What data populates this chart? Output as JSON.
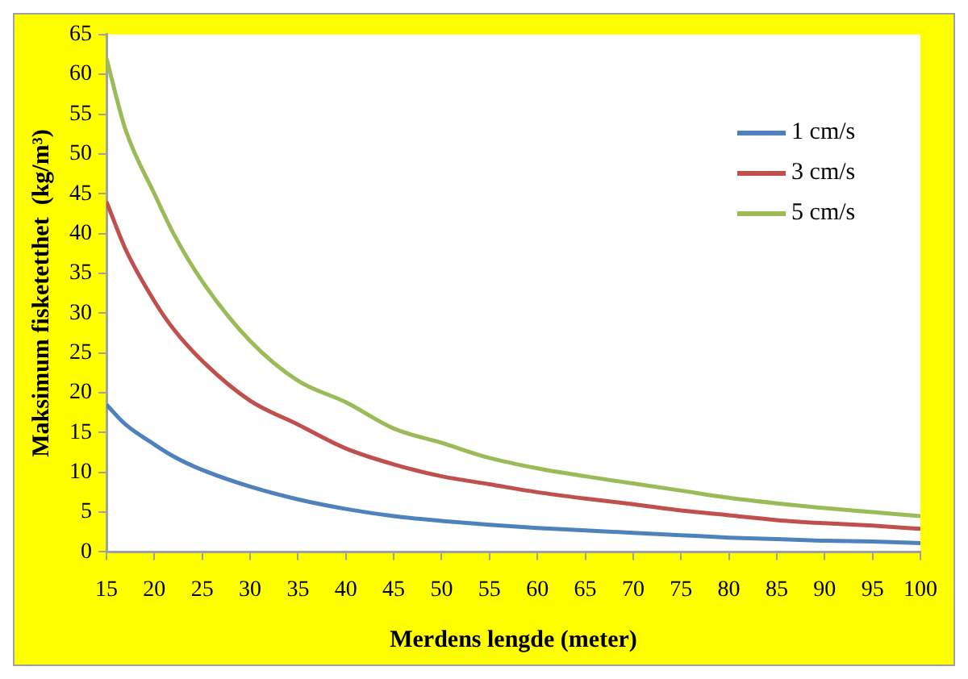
{
  "chart_data": {
    "type": "line",
    "xlabel": "Merdens lengde (meter)",
    "ylabel": "Maksimum fisketetthet  (kg/m³)",
    "x": [
      15,
      17,
      20,
      22,
      25,
      30,
      35,
      40,
      45,
      50,
      55,
      60,
      65,
      70,
      75,
      80,
      85,
      90,
      95,
      100
    ],
    "series": [
      {
        "name": "1 cm/s",
        "color": "#4f81bd",
        "values": [
          18.5,
          16,
          13.5,
          12,
          10.3,
          8.2,
          6.6,
          5.4,
          4.5,
          3.9,
          3.4,
          3.0,
          2.7,
          2.4,
          2.1,
          1.8,
          1.6,
          1.4,
          1.3,
          1.1
        ]
      },
      {
        "name": "3 cm/s",
        "color": "#c0504d",
        "values": [
          44,
          38,
          31.5,
          28,
          24,
          19,
          16,
          13,
          11,
          9.5,
          8.5,
          7.5,
          6.7,
          6,
          5.2,
          4.6,
          4,
          3.6,
          3.3,
          2.9
        ]
      },
      {
        "name": "5 cm/s",
        "color": "#9bbb59",
        "values": [
          62,
          53,
          45,
          40,
          34,
          26.5,
          21.5,
          18.8,
          15.5,
          13.7,
          11.8,
          10.5,
          9.5,
          8.6,
          7.7,
          6.8,
          6.1,
          5.5,
          5,
          4.5
        ]
      }
    ],
    "xlim": [
      15,
      100
    ],
    "xticks": [
      15,
      20,
      25,
      30,
      35,
      40,
      45,
      50,
      55,
      60,
      65,
      70,
      75,
      80,
      85,
      90,
      95,
      100
    ],
    "ylim": [
      0,
      65
    ],
    "yticks": [
      0,
      5,
      10,
      15,
      20,
      25,
      30,
      35,
      40,
      45,
      50,
      55,
      60,
      65
    ],
    "grid": false,
    "legend": "top right",
    "marker": "none",
    "line_style": "solid"
  }
}
